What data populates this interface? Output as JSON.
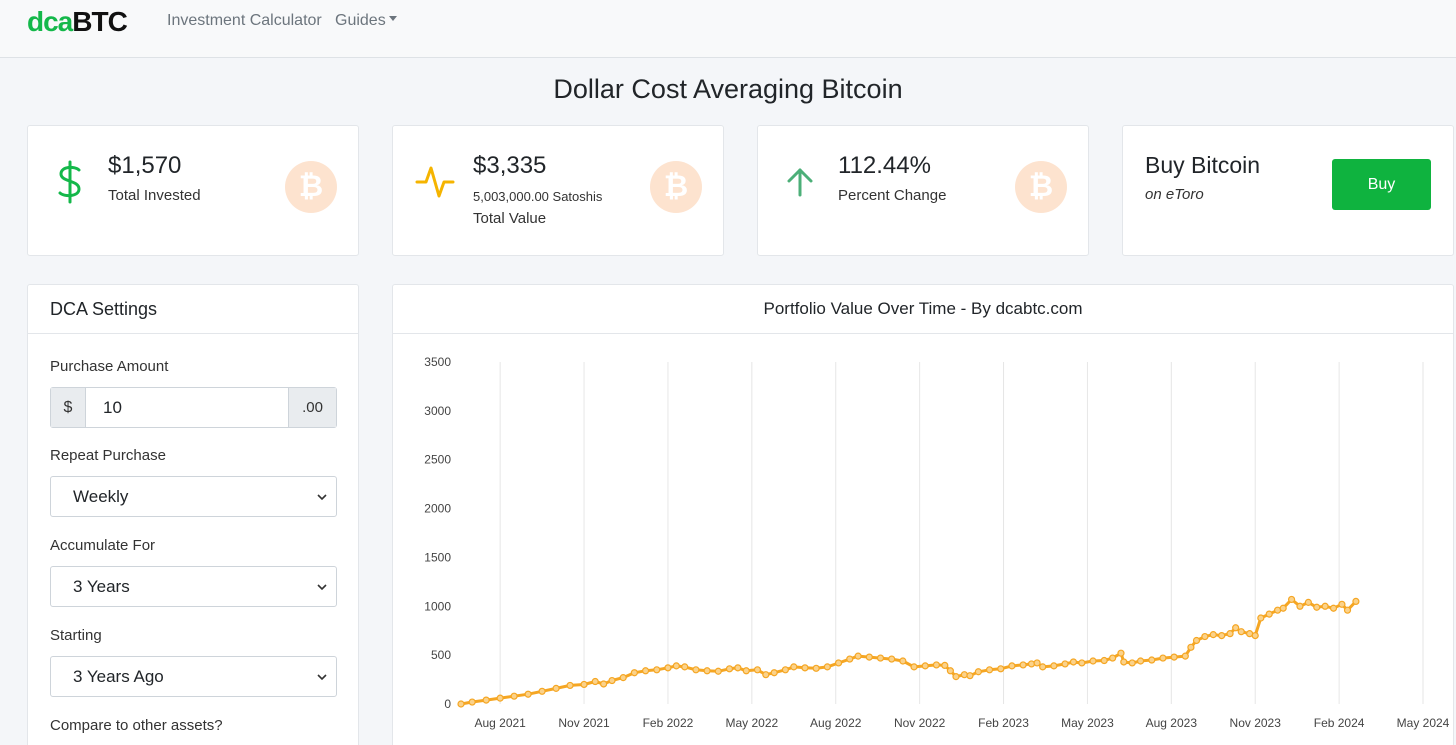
{
  "nav": {
    "brand_part1": "dca",
    "brand_part2": "BTC",
    "links": [
      {
        "label": "Investment Calculator"
      },
      {
        "label": "Guides"
      }
    ]
  },
  "page": {
    "title": "Dollar Cost Averaging Bitcoin"
  },
  "stats": {
    "invested": {
      "value": "$1,570",
      "label": "Total Invested",
      "icon": "dollar-icon"
    },
    "total_value": {
      "value": "$3,335",
      "sub": "5,003,000.00 Satoshis",
      "label": "Total Value",
      "icon": "activity-icon"
    },
    "percent": {
      "value": "112.44%",
      "label": "Percent Change",
      "icon": "arrow-up-icon"
    },
    "bitcoin_glyph": "₿"
  },
  "buy_card": {
    "title": "Buy Bitcoin",
    "subtitle": "on eToro",
    "button": "Buy"
  },
  "settings": {
    "header": "DCA Settings",
    "purchase_amount_label": "Purchase Amount",
    "currency_prefix": "$",
    "amount_value": "10",
    "amount_suffix": ".00",
    "repeat_label": "Repeat Purchase",
    "repeat_value": "Weekly",
    "accumulate_label": "Accumulate For",
    "accumulate_value": "3 Years",
    "starting_label": "Starting",
    "starting_value": "3 Years Ago",
    "compare_label": "Compare to other assets?"
  },
  "colors": {
    "accent": "#14b84a",
    "line": "#f5a623",
    "button": "#0fb33f"
  },
  "chart_data": {
    "type": "line",
    "title": "Portfolio Value Over Time - By dcabtc.com",
    "xlabel": "",
    "ylabel": "",
    "ylim": [
      0,
      3500
    ],
    "yticks": [
      0,
      500,
      1000,
      1500,
      2000,
      2500,
      3000,
      3500
    ],
    "xticks": [
      "Aug 2021",
      "Nov 2021",
      "Feb 2022",
      "May 2022",
      "Aug 2022",
      "Nov 2022",
      "Feb 2023",
      "May 2023",
      "Aug 2023",
      "Nov 2023",
      "Feb 2024",
      "May 2024"
    ],
    "x_start_month": -1.4,
    "x_end_month": 33.5,
    "series": [
      {
        "name": "Portfolio Value",
        "points": [
          [
            -1.4,
            0
          ],
          [
            -1.0,
            20
          ],
          [
            -0.5,
            40
          ],
          [
            0.0,
            60
          ],
          [
            0.5,
            80
          ],
          [
            1.0,
            100
          ],
          [
            1.5,
            130
          ],
          [
            2.0,
            160
          ],
          [
            2.5,
            190
          ],
          [
            3.0,
            200
          ],
          [
            3.4,
            230
          ],
          [
            3.7,
            205
          ],
          [
            4.0,
            240
          ],
          [
            4.4,
            270
          ],
          [
            4.8,
            320
          ],
          [
            5.2,
            340
          ],
          [
            5.6,
            350
          ],
          [
            6.0,
            370
          ],
          [
            6.3,
            390
          ],
          [
            6.6,
            380
          ],
          [
            7.0,
            350
          ],
          [
            7.4,
            340
          ],
          [
            7.8,
            335
          ],
          [
            8.2,
            360
          ],
          [
            8.5,
            370
          ],
          [
            8.8,
            340
          ],
          [
            9.2,
            350
          ],
          [
            9.5,
            300
          ],
          [
            9.8,
            320
          ],
          [
            10.2,
            350
          ],
          [
            10.5,
            380
          ],
          [
            10.9,
            370
          ],
          [
            11.3,
            365
          ],
          [
            11.7,
            380
          ],
          [
            12.1,
            420
          ],
          [
            12.5,
            460
          ],
          [
            12.8,
            490
          ],
          [
            13.2,
            480
          ],
          [
            13.6,
            470
          ],
          [
            14.0,
            460
          ],
          [
            14.4,
            440
          ],
          [
            14.8,
            380
          ],
          [
            15.2,
            390
          ],
          [
            15.6,
            400
          ],
          [
            15.9,
            395
          ],
          [
            16.1,
            340
          ],
          [
            16.3,
            280
          ],
          [
            16.6,
            300
          ],
          [
            16.8,
            290
          ],
          [
            17.1,
            330
          ],
          [
            17.5,
            350
          ],
          [
            17.9,
            360
          ],
          [
            18.3,
            390
          ],
          [
            18.7,
            400
          ],
          [
            19.0,
            410
          ],
          [
            19.2,
            420
          ],
          [
            19.4,
            380
          ],
          [
            19.8,
            390
          ],
          [
            20.2,
            410
          ],
          [
            20.5,
            430
          ],
          [
            20.8,
            420
          ],
          [
            21.2,
            440
          ],
          [
            21.6,
            445
          ],
          [
            21.9,
            470
          ],
          [
            22.2,
            520
          ],
          [
            22.3,
            430
          ],
          [
            22.6,
            420
          ],
          [
            22.9,
            440
          ],
          [
            23.3,
            450
          ],
          [
            23.7,
            470
          ],
          [
            24.1,
            480
          ],
          [
            24.5,
            490
          ],
          [
            24.7,
            580
          ],
          [
            24.9,
            650
          ],
          [
            25.2,
            690
          ],
          [
            25.5,
            710
          ],
          [
            25.8,
            700
          ],
          [
            26.1,
            720
          ],
          [
            26.3,
            780
          ],
          [
            26.5,
            740
          ],
          [
            26.8,
            720
          ],
          [
            27.0,
            700
          ],
          [
            27.2,
            880
          ],
          [
            27.5,
            920
          ],
          [
            27.8,
            960
          ],
          [
            28.0,
            980
          ],
          [
            28.3,
            1070
          ],
          [
            28.6,
            1000
          ],
          [
            28.9,
            1040
          ],
          [
            29.2,
            990
          ],
          [
            29.5,
            1000
          ],
          [
            29.8,
            980
          ],
          [
            30.1,
            1020
          ],
          [
            30.3,
            960
          ],
          [
            30.6,
            1050
          ]
        ]
      }
    ]
  }
}
